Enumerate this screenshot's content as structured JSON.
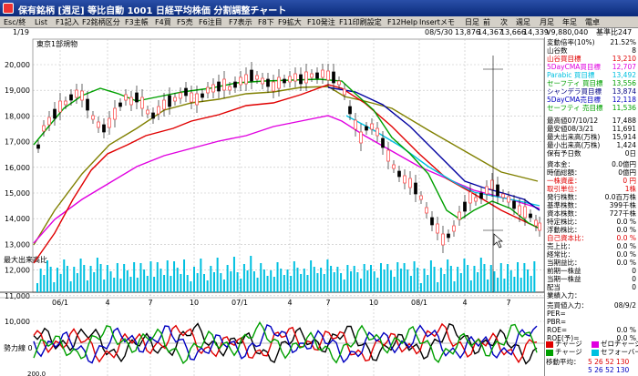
{
  "window": {
    "title": "保有銘柄 [週足] 等比自動  1001 日経平均株価 分割調整チャート"
  },
  "toolbar": [
    "Esc/終",
    "List",
    "F1記入",
    "F2銘柄区分",
    "F3主帳",
    "F4買",
    "F5売",
    "F6注目",
    "F7表示",
    "F8下",
    "F9拡大",
    "F10発注",
    "F11印刷設定",
    "F12Help",
    "Insertメモ",
    "日足",
    "前",
    "次",
    "週足",
    "月足",
    "年足",
    "電卓"
  ],
  "info": {
    "page": "1/19",
    "date": "08/5/30",
    "open": "13,876",
    "high": "14,367",
    "low": "13,666",
    "close": "14,339",
    "volume": "V9,880,040",
    "ratio": "基準比247"
  },
  "chart": {
    "sector_label": "東京1部規物",
    "volume_label": "最大出来高比",
    "momentum_label": "勢力線 0",
    "bottom_value": "200.0",
    "y_labels": [
      "20,000",
      "19,000",
      "18,000",
      "17,000",
      "16,000",
      "15,000",
      "14,000",
      "13,000",
      "12,000",
      "11,000",
      "10,000"
    ],
    "x_labels": [
      "06/1",
      "4",
      "7",
      "10",
      "07/1",
      "4",
      "7",
      "10",
      "08/1",
      "4",
      "7"
    ],
    "colors": {
      "ma_short": "#00a000",
      "ma_mid": "#e00000",
      "ma_magenta": "#e000e0",
      "ma_olive": "#808000",
      "ma_navy": "#0000a0",
      "ma_cyan": "#00c0e0",
      "volume": "#00c0e0",
      "candle_up": "#ff4040",
      "candle_down": "#000000"
    }
  },
  "panel": {
    "top": [
      {
        "l": "変動倍率(10%)",
        "v": "21.52%",
        "c": "#000"
      },
      {
        "l": "山谷数",
        "v": "8",
        "c": "#000"
      },
      {
        "l": "山谷買目標",
        "v": "13,210",
        "c": "#e00000"
      },
      {
        "l": "5DayCMA買目標",
        "v": "12,707",
        "c": "#e000e0"
      },
      {
        "l": "Parabic 買目標",
        "v": "13,492",
        "c": "#00c0e0"
      },
      {
        "l": "セーフティ 買目標",
        "v": "13,556",
        "c": "#00a000"
      },
      {
        "l": "シャンデラ買目標",
        "v": "13,874",
        "c": "#000080"
      },
      {
        "l": "5DayCMA売目標",
        "v": "12,118",
        "c": "#0000c0"
      },
      {
        "l": "セーフティ 売目標",
        "v": "11,536",
        "c": "#00a000"
      }
    ],
    "mid": [
      {
        "l": "最高値07/10/12",
        "v": "17,488",
        "c": "#000"
      },
      {
        "l": "最安値08/3/21",
        "v": "11,691",
        "c": "#000"
      },
      {
        "l": "最大出来高(万株)",
        "v": "15,914",
        "c": "#000"
      },
      {
        "l": "最小出来高(万株)",
        "v": "1,424",
        "c": "#000"
      },
      {
        "l": "保有予日数",
        "v": "0日",
        "c": "#000"
      }
    ],
    "fund": [
      {
        "l": "資本金：",
        "v": "0.0億円",
        "c": "#000"
      },
      {
        "l": "時価総額：",
        "v": "0億円",
        "c": "#000"
      },
      {
        "l": "一株資産：",
        "v": "0 円",
        "c": "#e00000"
      },
      {
        "l": "取引単位：",
        "v": "1株",
        "c": "#e00000"
      },
      {
        "l": "発行株数：",
        "v": "0.0百万株",
        "c": "#000"
      },
      {
        "l": "基準株数：",
        "v": "399千株",
        "c": "#000"
      },
      {
        "l": "資本株数：",
        "v": "727千株",
        "c": "#000"
      },
      {
        "l": "特定株比：",
        "v": "0.0 %",
        "c": "#000"
      },
      {
        "l": "浮動株比：",
        "v": "0.0 %",
        "c": "#000"
      },
      {
        "l": "自己資本比：",
        "v": "0.0 %",
        "c": "#e00000"
      },
      {
        "l": "売上比：",
        "v": "0.0 %",
        "c": "#000"
      },
      {
        "l": "経常比：",
        "v": "0.0 %",
        "c": "#000"
      },
      {
        "l": "当期益比：",
        "v": "0.0 %",
        "c": "#000"
      },
      {
        "l": "前期一株益",
        "v": "0",
        "c": "#000"
      },
      {
        "l": "当期一株益",
        "v": "0",
        "c": "#000"
      },
      {
        "l": "配当",
        "v": "0",
        "c": "#000"
      },
      {
        "l": "業績入力：",
        "v": "",
        "c": "#000"
      }
    ],
    "lower": [
      {
        "l": "売買値入力：",
        "v": "08/9/2",
        "c": "#000"
      },
      {
        "l": "PER=",
        "v": "",
        "c": "#000"
      },
      {
        "l": "PBR=",
        "v": "",
        "c": "#000"
      },
      {
        "l": "ROE=",
        "v": "0.0 %",
        "c": "#000"
      },
      {
        "l": "ROE(予)=",
        "v": "0.0 %",
        "c": "#000"
      }
    ]
  },
  "legend": {
    "items": [
      {
        "label": "チャージ",
        "color": "#e00000"
      },
      {
        "label": "ゼロチャージ",
        "color": "#e000e0"
      },
      {
        "label": "チャージ",
        "color": "#00a000"
      },
      {
        "label": "セフォーバー",
        "color": "#00c0e0"
      }
    ],
    "ma_label": "移動平均：",
    "ma_values_1": "5  26 52 130",
    "ma_values_2": "5  26 52 130"
  }
}
